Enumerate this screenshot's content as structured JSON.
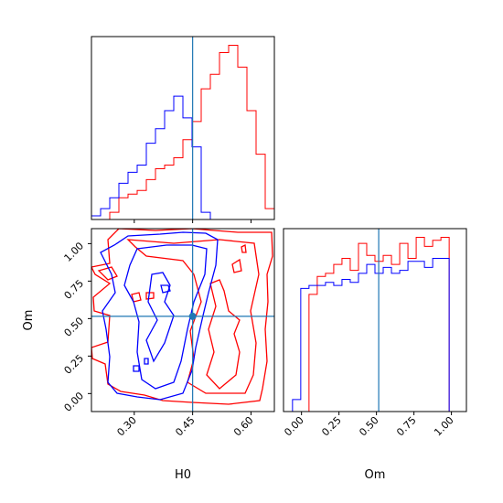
{
  "chart_data": {
    "type": "corner",
    "params": [
      "H0",
      "Om"
    ],
    "truth": {
      "H0": 0.45,
      "Om": 0.515
    },
    "truth_color": "#1f77b4",
    "series": [
      {
        "color": "#ff0000",
        "kind": "red"
      },
      {
        "color": "#0000ff",
        "kind": "blue"
      }
    ],
    "h0_hist": {
      "xlim": [
        0.19,
        0.66
      ],
      "ticks": [
        0.3,
        0.45,
        0.6
      ],
      "tick_labels": [
        "0.30",
        "0.45",
        "0.60"
      ],
      "bin_edges": [
        0.19,
        0.2135,
        0.237,
        0.2605,
        0.284,
        0.3075,
        0.331,
        0.3545,
        0.378,
        0.4015,
        0.425,
        0.4485,
        0.472,
        0.4955,
        0.519,
        0.5425,
        0.566,
        0.5895,
        0.613,
        0.6365,
        0.66
      ],
      "red": [
        0,
        0,
        2,
        6,
        7,
        8,
        11,
        14,
        15,
        17,
        22,
        27,
        36,
        40,
        46,
        48,
        42,
        30,
        18,
        3
      ],
      "blue": [
        1,
        3,
        6,
        10,
        13,
        15,
        21,
        25,
        30,
        34,
        28,
        20,
        2,
        0,
        0,
        0,
        0,
        0,
        0,
        0
      ]
    },
    "om_hist": {
      "xlim": [
        -0.12,
        1.1
      ],
      "ticks": [
        0.0,
        0.25,
        0.5,
        0.75,
        1.0
      ],
      "tick_labels": [
        "0.00",
        "0.25",
        "0.50",
        "0.75",
        "1.00"
      ],
      "bin_edges": [
        -0.06,
        -0.005,
        0.05,
        0.105,
        0.16,
        0.215,
        0.27,
        0.325,
        0.38,
        0.435,
        0.49,
        0.545,
        0.6,
        0.655,
        0.71,
        0.765,
        0.82,
        0.875,
        0.93,
        0.985,
        1.04,
        1.095
      ],
      "red": [
        0,
        0,
        39,
        45,
        46,
        49,
        51,
        47,
        56,
        52,
        50,
        52,
        49,
        56,
        51,
        58,
        55,
        57,
        58,
        0,
        0
      ],
      "blue": [
        4,
        41,
        42,
        42,
        43,
        42,
        44,
        43,
        46,
        49,
        46,
        48,
        46,
        47,
        50,
        50,
        48,
        51,
        51,
        0,
        0
      ]
    },
    "scatter_2d": {
      "xlim": [
        0.19,
        0.66
      ],
      "ylim": [
        -0.12,
        1.1
      ],
      "xticks": [
        0.3,
        0.45,
        0.6
      ],
      "xtick_labels": [
        "0.30",
        "0.45",
        "0.60"
      ],
      "yticks": [
        0.0,
        0.25,
        0.5,
        0.75,
        1.0
      ],
      "ytick_labels": [
        "0.00",
        "0.25",
        "0.50",
        "0.75",
        "1.00"
      ],
      "xlabel": "H0",
      "ylabel": "Om"
    },
    "labels": {
      "x_left": "H0",
      "x_right": "Om",
      "y_left": "Om"
    }
  }
}
